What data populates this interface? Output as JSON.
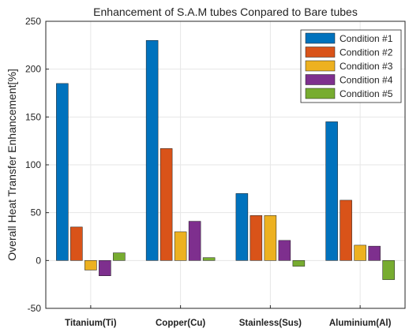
{
  "chart_data": {
    "type": "bar",
    "title": "Enhancement of S.A.M tubes Conpared to Bare tubes",
    "xlabel": "",
    "ylabel": "Overall Heat Transfer Enhancement[%]",
    "categories": [
      "Titanium(Ti)",
      "Copper(Cu)",
      "Stainless(Sus)",
      "Aluminium(Al)"
    ],
    "ylim": [
      -50,
      250
    ],
    "yticks": [
      -50,
      0,
      50,
      100,
      150,
      200,
      250
    ],
    "grid": true,
    "legend_position": "top-right",
    "series": [
      {
        "name": "Condition #1",
        "color": "#0072BD",
        "values": [
          185,
          230,
          70,
          145
        ]
      },
      {
        "name": "Condition #2",
        "color": "#D95319",
        "values": [
          35,
          117,
          47,
          63
        ]
      },
      {
        "name": "Condition #3",
        "color": "#EDB120",
        "values": [
          -10,
          30,
          47,
          16
        ]
      },
      {
        "name": "Condition #4",
        "color": "#7E2F8E",
        "values": [
          -16,
          41,
          21,
          15
        ]
      },
      {
        "name": "Condition #5",
        "color": "#77AC30",
        "values": [
          8,
          3,
          -6,
          -20
        ]
      }
    ]
  }
}
